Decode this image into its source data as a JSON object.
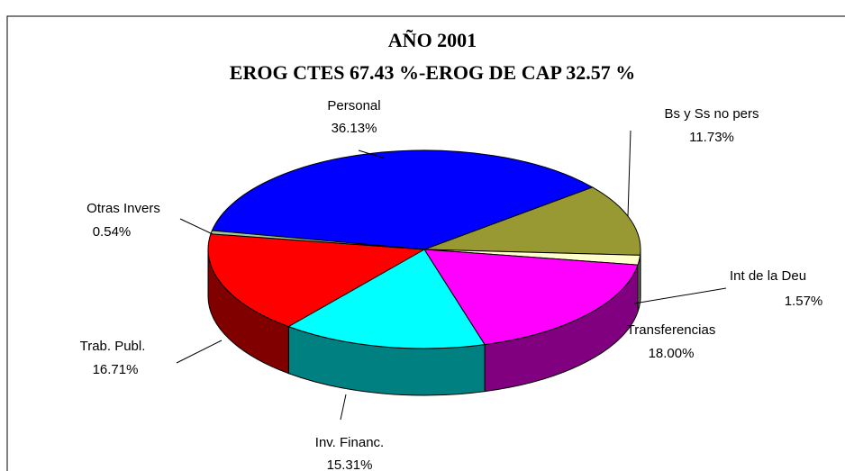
{
  "chart_data": {
    "type": "pie",
    "title": "AÑO 2001",
    "subtitle": "EROG CTES 67.43 %-EROG DE CAP 32.57 %",
    "categories": [
      "Personal",
      "Bs y Ss no pers",
      "Int de la Deu",
      "Transferencias",
      "Inv. Financ.",
      "Trab. Publ.",
      "Otras Invers"
    ],
    "values": [
      36.13,
      11.73,
      1.57,
      18.0,
      15.31,
      16.71,
      0.54
    ],
    "value_labels": [
      "36.13%",
      "11.73%",
      "1.57%",
      "18.00%",
      "15.31%",
      "16.71%",
      "0.54%"
    ],
    "colors": [
      "#0000ff",
      "#999933",
      "#ffffcc",
      "#ff00ff",
      "#00ffff",
      "#ff0000",
      "#99cc99"
    ],
    "three_d": true
  }
}
